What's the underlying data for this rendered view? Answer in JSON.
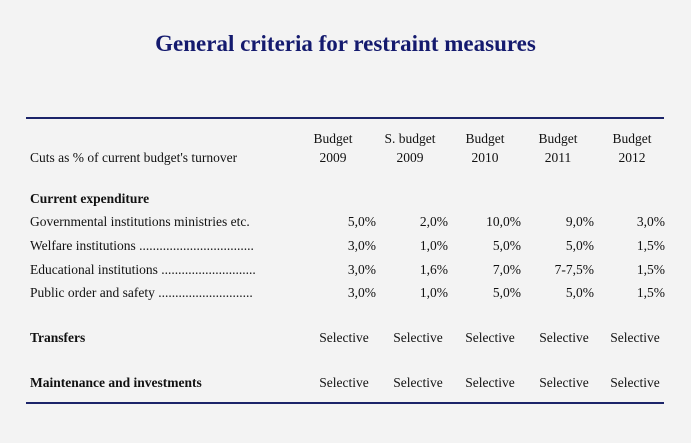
{
  "title": "General criteria for restraint measures",
  "header": {
    "row_label": "Cuts as % of current budget's turnover",
    "columns": [
      {
        "line1": "Budget",
        "line2": "2009"
      },
      {
        "line1": "S. budget",
        "line2": "2009"
      },
      {
        "line1": "Budget",
        "line2": "2010"
      },
      {
        "line1": "Budget",
        "line2": "2011"
      },
      {
        "line1": "Budget",
        "line2": "2012"
      }
    ]
  },
  "current_expenditure": {
    "heading": "Current expenditure",
    "rows": [
      {
        "label": "Governmental institutions ministries etc.",
        "values": [
          "5,0%",
          "2,0%",
          "10,0%",
          "9,0%",
          "3,0%"
        ]
      },
      {
        "label": "Welfare institutions ..................................",
        "values": [
          "3,0%",
          "1,0%",
          "5,0%",
          "5,0%",
          "1,5%"
        ]
      },
      {
        "label": "Educational institutions ............................",
        "values": [
          "3,0%",
          "1,6%",
          "7,0%",
          "7-7,5%",
          "1,5%"
        ]
      },
      {
        "label": "Public order and safety ............................",
        "values": [
          "3,0%",
          "1,0%",
          "5,0%",
          "5,0%",
          "1,5%"
        ]
      }
    ]
  },
  "transfers": {
    "heading": "Transfers",
    "values": [
      "Selective",
      "Selective",
      "Selective",
      "Selective",
      "Selective"
    ]
  },
  "maintenance": {
    "heading": "Maintenance and investments",
    "values": [
      "Selective",
      "Selective",
      "Selective",
      "Selective",
      "Selective"
    ]
  }
}
